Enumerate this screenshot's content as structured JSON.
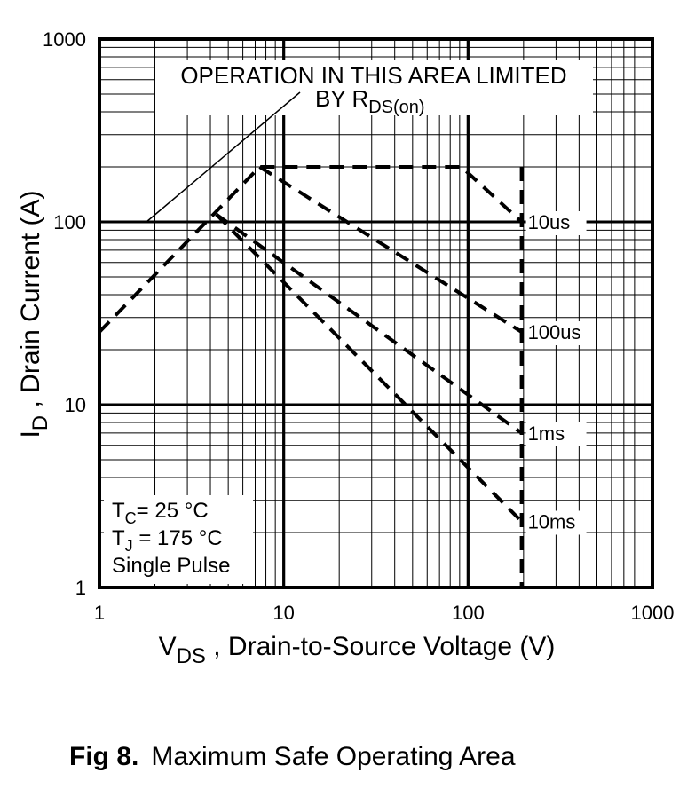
{
  "chart_data": {
    "type": "line",
    "scale": {
      "x": "log",
      "y": "log"
    },
    "xlim": [
      1,
      1000
    ],
    "ylim": [
      1,
      1000
    ],
    "grid": true,
    "x_ticks": [
      "1",
      "10",
      "100",
      "1000"
    ],
    "y_ticks": [
      "1",
      "10",
      "100",
      "1000"
    ],
    "xlabel": {
      "main": "V",
      "sub": "DS",
      "rest": " , Drain-to-Source Voltage (V)"
    },
    "ylabel": {
      "main": "I",
      "sub": "D",
      "rest": " , Drain Current (A)"
    },
    "annotation": {
      "line1": "OPERATION IN THIS AREA LIMITED",
      "line2_main": "BY R",
      "line2_sub": "DS(on)",
      "pointer": {
        "x": 1.8,
        "y": 100
      }
    },
    "conditions": {
      "tc_main": "T",
      "tc_sub": "C",
      "tc_rest": "= 25 °C",
      "tj_main": "T",
      "tj_sub": "J",
      "tj_rest": " = 175 °C",
      "pulse": "Single Pulse"
    },
    "series": [
      {
        "name": "10us",
        "points": [
          [
            1,
            25
          ],
          [
            7.4,
            200
          ],
          [
            22,
            200
          ],
          [
            92,
            200
          ],
          [
            195,
            100
          ]
        ]
      },
      {
        "name": "100us",
        "points": [
          [
            7.4,
            200
          ],
          [
            195,
            25
          ]
        ]
      },
      {
        "name": "1ms",
        "points": [
          [
            4.3,
            110
          ],
          [
            195,
            7
          ]
        ]
      },
      {
        "name": "10ms",
        "points": [
          [
            4.3,
            110
          ],
          [
            195,
            2.3
          ]
        ]
      },
      {
        "name": "",
        "points": [
          [
            195,
            200
          ],
          [
            195,
            1
          ]
        ]
      }
    ]
  },
  "caption": {
    "fig": "Fig 8.",
    "text": "Maximum Safe Operating Area"
  }
}
